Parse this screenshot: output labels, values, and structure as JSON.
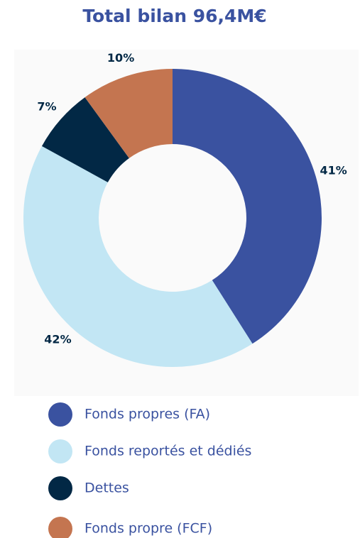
{
  "chart_data": {
    "type": "donut",
    "title": "Total bilan 96,4M€",
    "categories": [
      "Fonds propres (FA)",
      "Fonds reportés et dédiés",
      "Dettes",
      "Fonds propre (FCF)"
    ],
    "values": [
      41,
      42,
      7,
      10
    ],
    "value_labels": [
      "41%",
      "42%",
      "7%",
      "10%"
    ],
    "colors": [
      "#3a52a0",
      "#c2e6f4",
      "#022845",
      "#c47550"
    ]
  }
}
